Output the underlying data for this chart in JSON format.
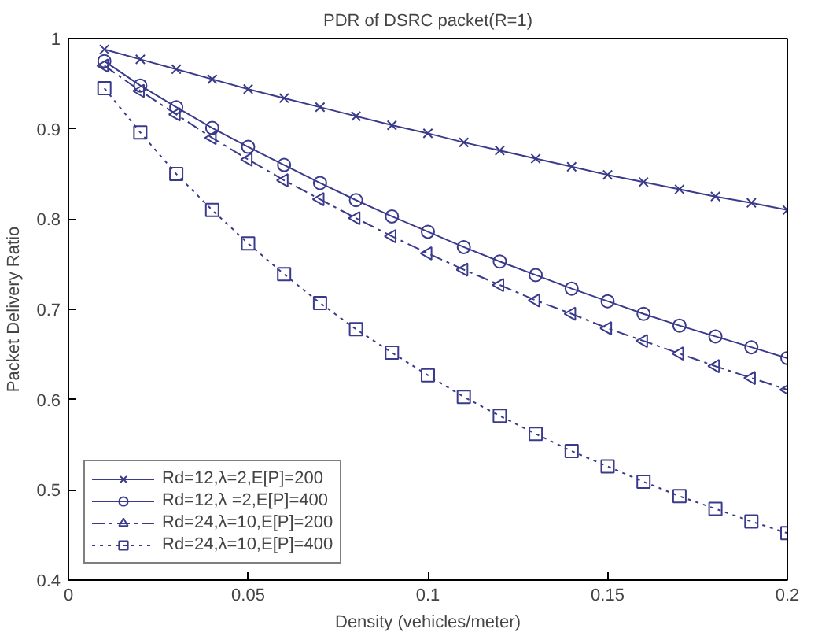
{
  "chart_data": {
    "type": "line",
    "title": "PDR of DSRC packet(R=1)",
    "xlabel": "Density (vehicles/meter)",
    "ylabel": "Packet Delivery Ratio",
    "x": [
      0.01,
      0.02,
      0.03,
      0.04,
      0.05,
      0.06,
      0.07,
      0.08,
      0.09,
      0.1,
      0.11,
      0.12,
      0.13,
      0.14,
      0.15,
      0.16,
      0.17,
      0.18,
      0.19,
      0.2
    ],
    "series": [
      {
        "name": "Rd=12,λ=2,E[P]=200",
        "color": "#3a3a8c",
        "marker": "cross",
        "line_style": "solid",
        "values": [
          0.988,
          0.977,
          0.966,
          0.955,
          0.944,
          0.934,
          0.924,
          0.914,
          0.904,
          0.895,
          0.885,
          0.876,
          0.867,
          0.858,
          0.849,
          0.841,
          0.833,
          0.825,
          0.818,
          0.81
        ]
      },
      {
        "name": "Rd=12,λ =2,E[P]=400",
        "color": "#3a3a8c",
        "marker": "circle",
        "line_style": "solid",
        "values": [
          0.975,
          0.948,
          0.924,
          0.901,
          0.88,
          0.86,
          0.84,
          0.821,
          0.803,
          0.786,
          0.769,
          0.753,
          0.738,
          0.723,
          0.709,
          0.695,
          0.682,
          0.67,
          0.658,
          0.646
        ]
      },
      {
        "name": "Rd=24,λ=10,E[P]=200",
        "color": "#3a3a8c",
        "marker": "triangle",
        "line_style": "dashed",
        "values": [
          0.97,
          0.942,
          0.916,
          0.89,
          0.866,
          0.843,
          0.822,
          0.801,
          0.781,
          0.762,
          0.744,
          0.727,
          0.71,
          0.695,
          0.679,
          0.665,
          0.651,
          0.637,
          0.624,
          0.611
        ]
      },
      {
        "name": "Rd=24,λ=10,E[P]=400",
        "color": "#3a3a8c",
        "marker": "square",
        "line_style": "dotted",
        "values": [
          0.945,
          0.896,
          0.85,
          0.81,
          0.773,
          0.739,
          0.707,
          0.678,
          0.652,
          0.627,
          0.603,
          0.582,
          0.562,
          0.543,
          0.526,
          0.509,
          0.493,
          0.479,
          0.465,
          0.452
        ]
      }
    ],
    "xlim": [
      0,
      0.2
    ],
    "ylim": [
      0.4,
      1
    ],
    "xticks": [
      0,
      0.05,
      0.1,
      0.15,
      0.2
    ],
    "yticks": [
      0.4,
      0.5,
      0.6,
      0.7,
      0.8,
      0.9,
      1
    ],
    "grid": false,
    "legend": "bottom left"
  }
}
